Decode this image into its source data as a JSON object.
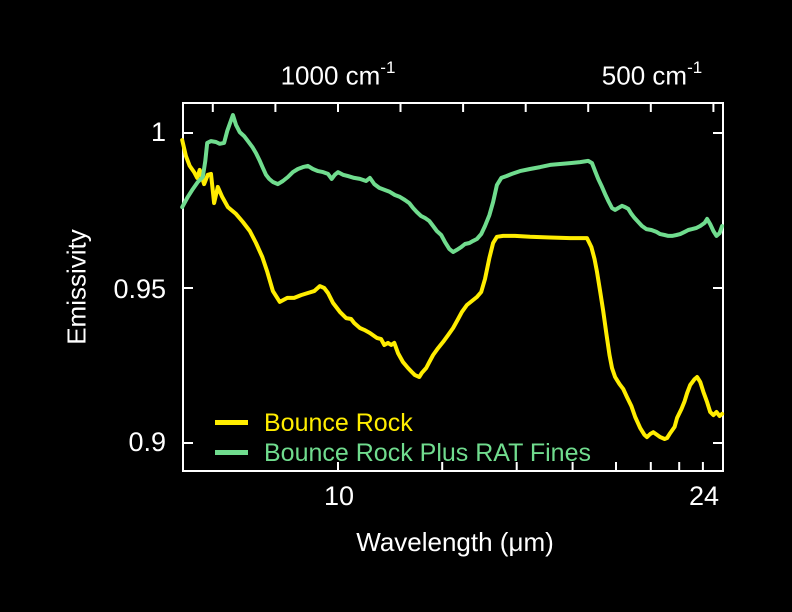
{
  "colors": {
    "background": "#000000",
    "axis": "#ffffff",
    "text": "#ffffff",
    "bounce_rock": "#ffed00",
    "rat_fines": "#70dc8e"
  },
  "axes": {
    "top": {
      "labels": [
        {
          "main": "1000 cm",
          "sup": "-1",
          "wavenumber_cm1": 1000
        },
        {
          "main": "500 cm",
          "sup": "-1",
          "wavenumber_cm1": 500
        }
      ],
      "tick_wavenumbers_cm1": [
        1200,
        1100,
        1000,
        900,
        800,
        700,
        600,
        500,
        400
      ]
    },
    "bottom": {
      "ticks_um": [
        10,
        12,
        14,
        16,
        18,
        20,
        22,
        24,
        26
      ],
      "labeled_ticks": [
        {
          "label": "10",
          "wavelength_um": 10
        },
        {
          "label": "24",
          "wavelength_um": 24
        }
      ]
    },
    "left": {
      "ticks": [
        {
          "label": "1",
          "value": 1.0
        },
        {
          "label": "0.95",
          "value": 0.95
        },
        {
          "label": "0.9",
          "value": 0.9
        }
      ]
    }
  },
  "chart_data": {
    "type": "line",
    "title": "",
    "xlabel": "Wavelength (μm)",
    "ylabel": "Emissivity",
    "x_axis": {
      "scale": "linear_in_wavenumber",
      "wavenumber_range_cm1": [
        1249,
        383
      ],
      "wavelength_range_um": [
        8.0,
        26.1
      ],
      "bottom_ticks_um": [
        10,
        12,
        14,
        16,
        18,
        20,
        22,
        24,
        26
      ],
      "top_ticks_cm1": [
        1200,
        1100,
        1000,
        900,
        800,
        700,
        600,
        500,
        400
      ]
    },
    "ylim": [
      0.89,
      1.01
    ],
    "grid": false,
    "legend_position": "lower-left-inside",
    "series": [
      {
        "name": "Bounce Rock",
        "color": "#ffed00",
        "units": "[wavenumber_cm-1, emissivity]",
        "data": [
          [
            1249,
            0.9977
          ],
          [
            1243,
            0.9926
          ],
          [
            1237,
            0.9894
          ],
          [
            1230,
            0.9874
          ],
          [
            1225,
            0.9855
          ],
          [
            1221,
            0.9881
          ],
          [
            1214,
            0.9835
          ],
          [
            1208,
            0.9865
          ],
          [
            1203,
            0.9868
          ],
          [
            1198,
            0.9774
          ],
          [
            1192,
            0.9826
          ],
          [
            1185,
            0.9794
          ],
          [
            1176,
            0.9761
          ],
          [
            1163,
            0.9739
          ],
          [
            1152,
            0.9713
          ],
          [
            1141,
            0.9684
          ],
          [
            1131,
            0.9645
          ],
          [
            1121,
            0.96
          ],
          [
            1113,
            0.9552
          ],
          [
            1104,
            0.949
          ],
          [
            1093,
            0.9455
          ],
          [
            1081,
            0.9468
          ],
          [
            1070,
            0.9468
          ],
          [
            1059,
            0.9477
          ],
          [
            1048,
            0.9484
          ],
          [
            1038,
            0.949
          ],
          [
            1029,
            0.9506
          ],
          [
            1022,
            0.95
          ],
          [
            1016,
            0.9484
          ],
          [
            1008,
            0.9452
          ],
          [
            997,
            0.9423
          ],
          [
            987,
            0.9403
          ],
          [
            979,
            0.94
          ],
          [
            974,
            0.9387
          ],
          [
            965,
            0.9371
          ],
          [
            958,
            0.9365
          ],
          [
            949,
            0.9355
          ],
          [
            938,
            0.9339
          ],
          [
            931,
            0.9335
          ],
          [
            926,
            0.9316
          ],
          [
            920,
            0.9323
          ],
          [
            915,
            0.9316
          ],
          [
            910,
            0.9323
          ],
          [
            904,
            0.929
          ],
          [
            896,
            0.9261
          ],
          [
            888,
            0.9242
          ],
          [
            882,
            0.9229
          ],
          [
            877,
            0.9219
          ],
          [
            870,
            0.9213
          ],
          [
            866,
            0.9226
          ],
          [
            859,
            0.9242
          ],
          [
            854,
            0.9261
          ],
          [
            848,
            0.9284
          ],
          [
            840,
            0.9306
          ],
          [
            832,
            0.9326
          ],
          [
            824,
            0.9348
          ],
          [
            816,
            0.9371
          ],
          [
            808,
            0.94
          ],
          [
            802,
            0.9423
          ],
          [
            794,
            0.9445
          ],
          [
            786,
            0.9458
          ],
          [
            778,
            0.9471
          ],
          [
            771,
            0.9487
          ],
          [
            765,
            0.9529
          ],
          [
            758,
            0.9597
          ],
          [
            752,
            0.9645
          ],
          [
            746,
            0.9665
          ],
          [
            736,
            0.9668
          ],
          [
            717,
            0.9668
          ],
          [
            693,
            0.9665
          ],
          [
            661,
            0.9663
          ],
          [
            629,
            0.9661
          ],
          [
            602,
            0.9661
          ],
          [
            595,
            0.9632
          ],
          [
            590,
            0.9594
          ],
          [
            586,
            0.9552
          ],
          [
            581,
            0.949
          ],
          [
            576,
            0.9426
          ],
          [
            571,
            0.9352
          ],
          [
            566,
            0.9284
          ],
          [
            562,
            0.9242
          ],
          [
            557,
            0.9213
          ],
          [
            550,
            0.919
          ],
          [
            544,
            0.9174
          ],
          [
            538,
            0.9148
          ],
          [
            531,
            0.9119
          ],
          [
            525,
            0.9084
          ],
          [
            517,
            0.9048
          ],
          [
            510,
            0.9026
          ],
          [
            506,
            0.9019
          ],
          [
            501,
            0.9029
          ],
          [
            496,
            0.9035
          ],
          [
            490,
            0.9026
          ],
          [
            485,
            0.9019
          ],
          [
            478,
            0.9013
          ],
          [
            474,
            0.9016
          ],
          [
            469,
            0.9032
          ],
          [
            462,
            0.9052
          ],
          [
            458,
            0.9081
          ],
          [
            451,
            0.911
          ],
          [
            446,
            0.9135
          ],
          [
            442,
            0.9161
          ],
          [
            437,
            0.9187
          ],
          [
            430,
            0.9206
          ],
          [
            426,
            0.9213
          ],
          [
            421,
            0.9197
          ],
          [
            416,
            0.9165
          ],
          [
            410,
            0.9132
          ],
          [
            405,
            0.91
          ],
          [
            400,
            0.909
          ],
          [
            395,
            0.91
          ],
          [
            390,
            0.9087
          ],
          [
            386,
            0.9094
          ]
        ]
      },
      {
        "name": "Bounce Rock Plus RAT Fines",
        "color": "#70dc8e",
        "units": "[wavenumber_cm-1, emissivity]",
        "data": [
          [
            1249,
            0.9761
          ],
          [
            1240,
            0.9794
          ],
          [
            1232,
            0.9819
          ],
          [
            1224,
            0.9842
          ],
          [
            1216,
            0.9858
          ],
          [
            1212,
            0.991
          ],
          [
            1209,
            0.9968
          ],
          [
            1203,
            0.9974
          ],
          [
            1195,
            0.9971
          ],
          [
            1189,
            0.9965
          ],
          [
            1182,
            0.9968
          ],
          [
            1177,
            1.0006
          ],
          [
            1173,
            1.0029
          ],
          [
            1168,
            1.0058
          ],
          [
            1163,
            1.0026
          ],
          [
            1157,
            1.0003
          ],
          [
            1150,
            0.999
          ],
          [
            1144,
            0.9974
          ],
          [
            1137,
            0.9955
          ],
          [
            1131,
            0.9935
          ],
          [
            1125,
            0.991
          ],
          [
            1120,
            0.9887
          ],
          [
            1115,
            0.9865
          ],
          [
            1110,
            0.9852
          ],
          [
            1104,
            0.9842
          ],
          [
            1096,
            0.9835
          ],
          [
            1088,
            0.9845
          ],
          [
            1080,
            0.9858
          ],
          [
            1072,
            0.9874
          ],
          [
            1064,
            0.9884
          ],
          [
            1056,
            0.989
          ],
          [
            1048,
            0.9894
          ],
          [
            1040,
            0.9884
          ],
          [
            1032,
            0.9877
          ],
          [
            1024,
            0.9874
          ],
          [
            1016,
            0.9868
          ],
          [
            1010,
            0.9852
          ],
          [
            1005,
            0.9865
          ],
          [
            1000,
            0.9874
          ],
          [
            992,
            0.9865
          ],
          [
            984,
            0.9861
          ],
          [
            974,
            0.9855
          ],
          [
            965,
            0.9852
          ],
          [
            955,
            0.9845
          ],
          [
            949,
            0.9855
          ],
          [
            942,
            0.9835
          ],
          [
            934,
            0.9823
          ],
          [
            925,
            0.9816
          ],
          [
            917,
            0.981
          ],
          [
            909,
            0.98
          ],
          [
            901,
            0.9794
          ],
          [
            893,
            0.9784
          ],
          [
            886,
            0.9774
          ],
          [
            880,
            0.9758
          ],
          [
            874,
            0.9745
          ],
          [
            867,
            0.9732
          ],
          [
            861,
            0.9726
          ],
          [
            854,
            0.9716
          ],
          [
            848,
            0.97
          ],
          [
            842,
            0.9684
          ],
          [
            835,
            0.9671
          ],
          [
            829,
            0.9648
          ],
          [
            822,
            0.9626
          ],
          [
            816,
            0.9616
          ],
          [
            810,
            0.9623
          ],
          [
            803,
            0.9632
          ],
          [
            797,
            0.9642
          ],
          [
            790,
            0.9645
          ],
          [
            784,
            0.9652
          ],
          [
            778,
            0.9658
          ],
          [
            771,
            0.9674
          ],
          [
            765,
            0.97
          ],
          [
            758,
            0.9735
          ],
          [
            752,
            0.9777
          ],
          [
            746,
            0.9832
          ],
          [
            739,
            0.9855
          ],
          [
            731,
            0.9861
          ],
          [
            722,
            0.9868
          ],
          [
            709,
            0.9877
          ],
          [
            693,
            0.9884
          ],
          [
            677,
            0.989
          ],
          [
            661,
            0.9897
          ],
          [
            645,
            0.99
          ],
          [
            629,
            0.9903
          ],
          [
            613,
            0.9906
          ],
          [
            600,
            0.991
          ],
          [
            594,
            0.9903
          ],
          [
            589,
            0.9877
          ],
          [
            584,
            0.9852
          ],
          [
            578,
            0.9826
          ],
          [
            573,
            0.9803
          ],
          [
            568,
            0.9781
          ],
          [
            562,
            0.9758
          ],
          [
            557,
            0.9752
          ],
          [
            552,
            0.9758
          ],
          [
            546,
            0.9765
          ],
          [
            541,
            0.9761
          ],
          [
            536,
            0.9755
          ],
          [
            531,
            0.9739
          ],
          [
            526,
            0.9726
          ],
          [
            520,
            0.9713
          ],
          [
            514,
            0.97
          ],
          [
            507,
            0.969
          ],
          [
            499,
            0.9687
          ],
          [
            491,
            0.9681
          ],
          [
            485,
            0.9674
          ],
          [
            478,
            0.9671
          ],
          [
            472,
            0.9668
          ],
          [
            466,
            0.9668
          ],
          [
            459,
            0.9671
          ],
          [
            453,
            0.9674
          ],
          [
            446,
            0.9681
          ],
          [
            440,
            0.9687
          ],
          [
            434,
            0.969
          ],
          [
            427,
            0.9694
          ],
          [
            421,
            0.97
          ],
          [
            414,
            0.971
          ],
          [
            410,
            0.9723
          ],
          [
            405,
            0.9706
          ],
          [
            400,
            0.9684
          ],
          [
            395,
            0.9668
          ],
          [
            390,
            0.9677
          ],
          [
            386,
            0.97
          ]
        ]
      }
    ]
  }
}
